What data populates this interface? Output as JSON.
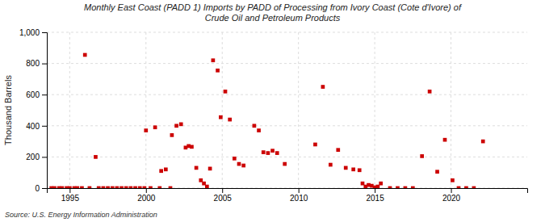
{
  "chart_data": {
    "type": "scatter",
    "title": "Monthly East Coast (PADD 1) Imports by PADD of Processing from Ivory Coast (Cote d'Ivore) of\nCrude Oil and Petroleum Products",
    "ylabel": "Thousand Barrels",
    "annotations": [
      "Source: U.S. Energy Information Administration"
    ],
    "xlim": [
      1993.5,
      2025.0
    ],
    "xticks": [
      1995,
      2000,
      2005,
      2010,
      2015,
      2020
    ],
    "ylim": [
      0,
      1000
    ],
    "yticks": [
      0,
      200,
      400,
      600,
      800,
      {
        "value": 1000,
        "label": "1,000"
      }
    ],
    "grid": true,
    "series": [
      {
        "color": "#cc0000",
        "marker": "square",
        "x": [
          1996.0,
          1996.7,
          2000.0,
          2000.6,
          2001.0,
          2001.3,
          2001.7,
          2002.0,
          2002.3,
          2002.6,
          2002.8,
          2003.0,
          2003.3,
          2003.6,
          2003.8,
          2004.0,
          2004.2,
          2004.4,
          2004.7,
          2004.9,
          2005.2,
          2005.5,
          2005.8,
          2006.1,
          2006.4,
          2007.1,
          2007.4,
          2007.7,
          2008.0,
          2008.3,
          2008.6,
          2009.1,
          2011.1,
          2011.6,
          2012.1,
          2012.6,
          2013.1,
          2013.6,
          2014.0,
          2014.2,
          2014.4,
          2014.6,
          2014.8,
          2015.0,
          2015.2,
          2015.4,
          2018.1,
          2018.6,
          2019.1,
          2019.6,
          2020.1,
          2022.1
        ],
        "values": [
          855,
          200,
          370,
          390,
          110,
          120,
          340,
          400,
          410,
          260,
          270,
          265,
          130,
          50,
          30,
          10,
          125,
          820,
          755,
          455,
          620,
          440,
          190,
          155,
          145,
          400,
          370,
          230,
          225,
          240,
          225,
          155,
          280,
          650,
          150,
          245,
          130,
          120,
          115,
          30,
          10,
          20,
          15,
          5,
          10,
          30,
          205,
          620,
          105,
          310,
          50,
          300
        ]
      },
      {
        "color": "#cc0000",
        "marker": "square",
        "x": [
          1993.8,
          1994.0,
          1994.3,
          1994.5,
          1994.8,
          1995.0,
          1995.3,
          1995.5,
          1995.8,
          1996.3,
          1996.9,
          1997.2,
          1997.5,
          1997.8,
          1998.1,
          1998.4,
          1998.7,
          1999.0,
          1999.3,
          1999.6,
          1999.9,
          2000.3,
          2000.9,
          2001.6,
          2016.0,
          2016.5,
          2017.0,
          2017.5,
          2020.5,
          2021.0,
          2021.5
        ],
        "values": [
          0,
          0,
          0,
          0,
          0,
          0,
          0,
          0,
          0,
          0,
          0,
          0,
          0,
          0,
          0,
          0,
          0,
          0,
          0,
          0,
          0,
          0,
          0,
          0,
          0,
          0,
          0,
          0,
          0,
          0,
          0
        ]
      }
    ]
  }
}
